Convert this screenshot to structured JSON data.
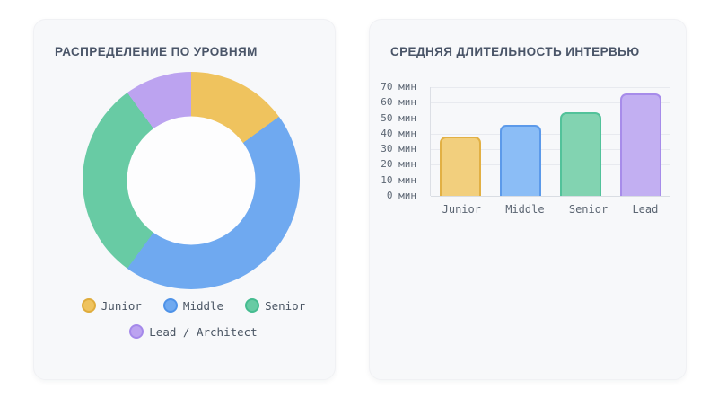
{
  "chart_data": [
    {
      "type": "pie",
      "variant": "donut",
      "title": "РАСПРЕДЕЛЕНИЕ ПО УРОВНЯМ",
      "labels": [
        "Junior",
        "Middle",
        "Senior",
        "Lead / Architect"
      ],
      "values_pct": [
        15,
        45,
        30,
        10
      ],
      "colors": [
        "#EFC35E",
        "#6FA9F0",
        "#68CBA4",
        "#BCA3F0"
      ],
      "border_colors": [
        "#DFAC3C",
        "#4E92E8",
        "#45BC90",
        "#A589EA"
      ],
      "legend_position": "bottom",
      "hole_ratio": 0.59
    },
    {
      "type": "bar",
      "title": "СРЕДНЯЯ ДЛИТЕЛЬНОСТЬ ИНТЕРВЬЮ",
      "categories": [
        "Junior",
        "Middle",
        "Senior",
        "Lead"
      ],
      "values": [
        38,
        46,
        54,
        66
      ],
      "unit": "мин",
      "ylim": [
        0,
        70
      ],
      "ytick_step": 10,
      "ytick_labels": [
        "70 мин",
        "60 мин",
        "50 мин",
        "40 мин",
        "30 мин",
        "20 мин",
        "10 мин",
        "0 мин"
      ],
      "grid": true,
      "legend": "none",
      "bar_colors": [
        "#F2CF7D",
        "#8BBDF6",
        "#82D3B1",
        "#C2AFF2"
      ],
      "bar_border_colors": [
        "#E2B044",
        "#5C9AEA",
        "#52C29A",
        "#A78CEA"
      ]
    }
  ]
}
